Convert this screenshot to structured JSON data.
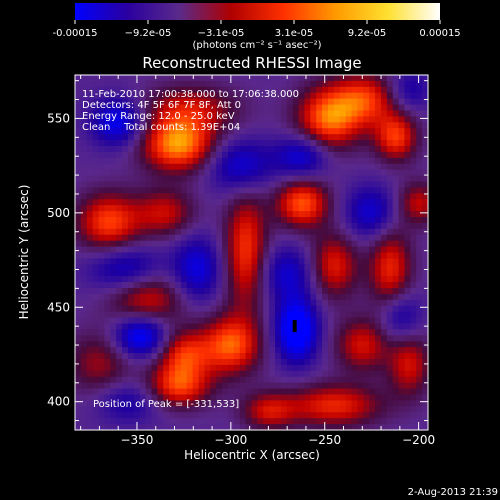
{
  "colorbar": {
    "tick_labels": [
      "-0.00015",
      "−9.2e-05",
      "−3.1e-05",
      "3.1e-05",
      "9.2e-05",
      "0.00015"
    ],
    "units": "(photons cm⁻² s⁻¹ asec⁻²)",
    "colors": [
      "#0000ff",
      "#2a00a0",
      "#5a2a8a",
      "#b00000",
      "#ff3000",
      "#ff9a00",
      "#ffe030",
      "#ffffff"
    ],
    "range": [
      -0.00015,
      0.00015
    ]
  },
  "chart_data": {
    "type": "heatmap",
    "title": "Reconstructed RHESSI Image",
    "xlabel": "Heliocentric X (arcsec)",
    "ylabel": "Heliocentric Y (arcsec)",
    "xlim": [
      -383,
      -195
    ],
    "ylim": [
      385,
      573
    ],
    "x_ticks": [
      {
        "value": -350,
        "label": "−350"
      },
      {
        "value": -300,
        "label": "−300"
      },
      {
        "value": -250,
        "label": "−250"
      },
      {
        "value": -200,
        "label": "−200"
      }
    ],
    "y_ticks": [
      {
        "value": 400,
        "label": "400"
      },
      {
        "value": 450,
        "label": "450"
      },
      {
        "value": 500,
        "label": "500"
      },
      {
        "value": 550,
        "label": "550"
      }
    ],
    "annotations": [
      "11-Feb-2010 17:00:38.000 to 17:06:38.000",
      "Detectors: 4F 5F 6F 7F 8F, Att 0",
      "Energy Range: 12.0 - 25.0 keV",
      "Clean",
      "Total counts: 1.39E+04"
    ],
    "peak_label": "Position of Peak = [-331,533]",
    "blobs": [
      {
        "x": -328,
        "y": 536,
        "v": 1.0,
        "sx": 14,
        "sy": 10
      },
      {
        "x": -322,
        "y": 555,
        "v": 0.55,
        "sx": 18,
        "sy": 9
      },
      {
        "x": -248,
        "y": 550,
        "v": 0.9,
        "sx": 12,
        "sy": 12
      },
      {
        "x": -228,
        "y": 560,
        "v": 0.7,
        "sx": 12,
        "sy": 10
      },
      {
        "x": -262,
        "y": 505,
        "v": 0.85,
        "sx": 10,
        "sy": 9
      },
      {
        "x": -212,
        "y": 540,
        "v": 0.75,
        "sx": 8,
        "sy": 9
      },
      {
        "x": -200,
        "y": 505,
        "v": 0.55,
        "sx": 8,
        "sy": 8
      },
      {
        "x": -365,
        "y": 495,
        "v": 0.8,
        "sx": 12,
        "sy": 11
      },
      {
        "x": -335,
        "y": 500,
        "v": 0.55,
        "sx": 11,
        "sy": 9
      },
      {
        "x": -292,
        "y": 480,
        "v": 0.75,
        "sx": 8,
        "sy": 22
      },
      {
        "x": -300,
        "y": 430,
        "v": 0.85,
        "sx": 11,
        "sy": 11
      },
      {
        "x": -325,
        "y": 425,
        "v": 0.7,
        "sx": 10,
        "sy": 9
      },
      {
        "x": -345,
        "y": 455,
        "v": 0.65,
        "sx": 14,
        "sy": 11
      },
      {
        "x": -370,
        "y": 420,
        "v": 0.45,
        "sx": 12,
        "sy": 12
      },
      {
        "x": -328,
        "y": 408,
        "v": 0.75,
        "sx": 12,
        "sy": 8
      },
      {
        "x": -245,
        "y": 472,
        "v": 0.65,
        "sx": 9,
        "sy": 12
      },
      {
        "x": -215,
        "y": 470,
        "v": 0.7,
        "sx": 8,
        "sy": 16
      },
      {
        "x": -230,
        "y": 430,
        "v": 0.6,
        "sx": 10,
        "sy": 10
      },
      {
        "x": -205,
        "y": 420,
        "v": 0.6,
        "sx": 8,
        "sy": 12
      },
      {
        "x": -245,
        "y": 398,
        "v": 0.7,
        "sx": 18,
        "sy": 8
      },
      {
        "x": -280,
        "y": 395,
        "v": 0.55,
        "sx": 10,
        "sy": 7
      },
      {
        "x": -360,
        "y": 548,
        "v": -0.7,
        "sx": 10,
        "sy": 9
      },
      {
        "x": -355,
        "y": 470,
        "v": -0.6,
        "sx": 14,
        "sy": 9
      },
      {
        "x": -348,
        "y": 435,
        "v": -0.85,
        "sx": 10,
        "sy": 8
      },
      {
        "x": -318,
        "y": 470,
        "v": -0.6,
        "sx": 9,
        "sy": 12
      },
      {
        "x": -295,
        "y": 525,
        "v": -0.6,
        "sx": 12,
        "sy": 10
      },
      {
        "x": -262,
        "y": 530,
        "v": -0.6,
        "sx": 10,
        "sy": 8
      },
      {
        "x": -265,
        "y": 438,
        "v": -0.95,
        "sx": 8,
        "sy": 12
      },
      {
        "x": -270,
        "y": 468,
        "v": -0.5,
        "sx": 10,
        "sy": 10
      },
      {
        "x": -225,
        "y": 500,
        "v": -0.55,
        "sx": 10,
        "sy": 10
      },
      {
        "x": -210,
        "y": 445,
        "v": -0.5,
        "sx": 8,
        "sy": 10
      },
      {
        "x": -355,
        "y": 400,
        "v": -0.4,
        "sx": 12,
        "sy": 8
      },
      {
        "x": -205,
        "y": 565,
        "v": -0.4,
        "sx": 8,
        "sy": 8
      }
    ],
    "background_level": -0.28
  },
  "footer": {
    "date": "2-Aug-2013 21:39"
  }
}
